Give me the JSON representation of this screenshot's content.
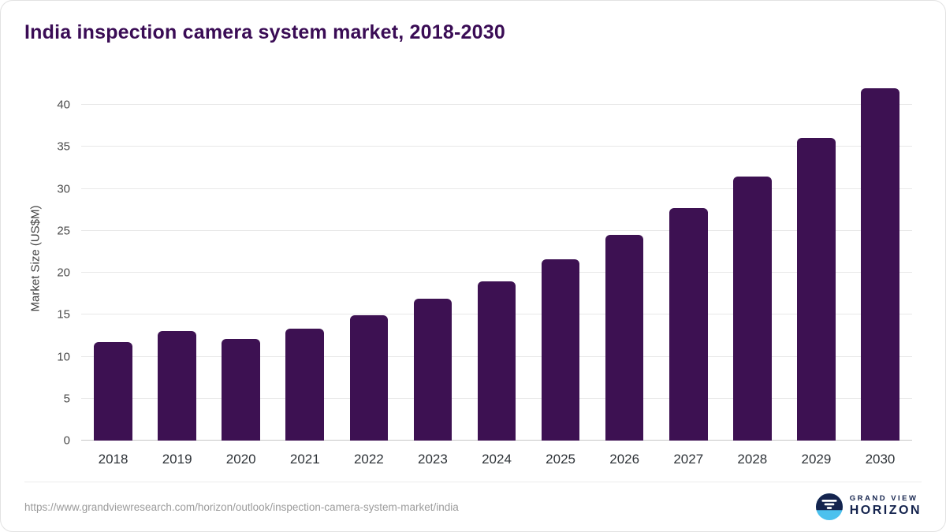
{
  "title": "India inspection camera system market, 2018-2030",
  "footer": {
    "source_url": "https://www.grandviewresearch.com/horizon/outlook/inspection-camera-system-market/india",
    "brand_top": "GRAND VIEW",
    "brand_bottom": "HORIZON"
  },
  "colors": {
    "bar": "#3d1152",
    "title_text": "#3a0c55",
    "gridline": "#e8e8e8",
    "axis_text": "#4a4a4a",
    "logo_navy": "#15244e",
    "logo_blue": "#4cc1ee"
  },
  "chart_data": {
    "type": "bar",
    "title": "India inspection camera system market, 2018-2030",
    "categories": [
      "2018",
      "2019",
      "2020",
      "2021",
      "2022",
      "2023",
      "2024",
      "2025",
      "2026",
      "2027",
      "2028",
      "2029",
      "2030"
    ],
    "values": [
      11.7,
      13.1,
      12.1,
      13.3,
      14.9,
      16.9,
      19.0,
      21.6,
      24.5,
      27.7,
      31.5,
      36.1,
      42.0
    ],
    "xlabel": "",
    "ylabel": "Market Size (US$M)",
    "ylim": [
      0,
      43.5
    ],
    "yticks": [
      0,
      5,
      10,
      15,
      20,
      25,
      30,
      35,
      40
    ],
    "grid": true,
    "legend": false,
    "bar_color": "#3d1152"
  }
}
